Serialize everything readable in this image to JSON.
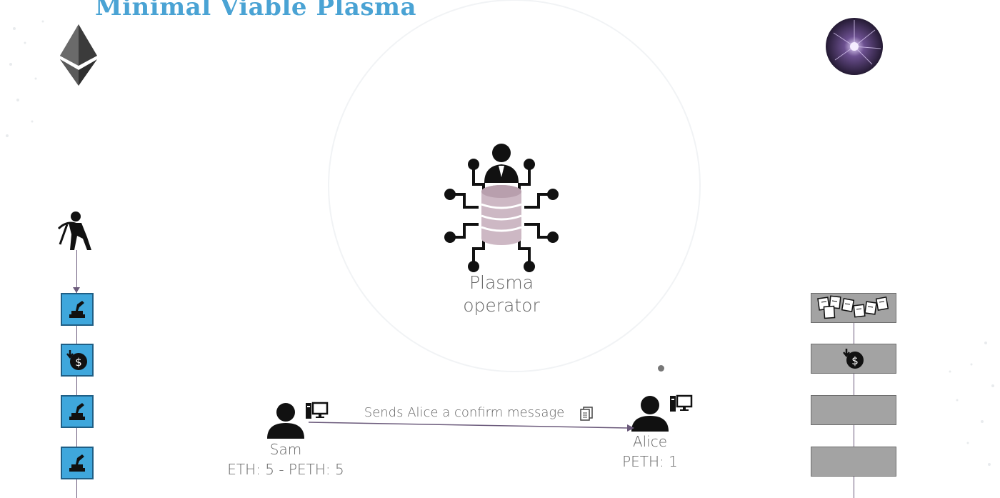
{
  "slide": {
    "title": "Minimal Viable Plasma"
  },
  "logos": {
    "left": "ethereum-logo",
    "right": "plasma-ball-logo"
  },
  "operator": {
    "label_line1": "Plasma",
    "label_line2": "operator",
    "icon": "operator-database-circuit-icon"
  },
  "sam": {
    "name": "Sam",
    "balance": "ETH: 5 - PETH: 5",
    "icon": "user-computer-icon"
  },
  "alice": {
    "name": "Alice",
    "balance": "PETH: 1",
    "icon": "user-computer-icon"
  },
  "message": {
    "text": "Sends Alice a confirm message",
    "icon": "document-icon"
  },
  "ethereum_chain": {
    "miner_icon": "miner-icon",
    "blocks": [
      {
        "icon": "stamp-icon"
      },
      {
        "icon": "deposit-coin-icon"
      },
      {
        "icon": "stamp-icon"
      },
      {
        "icon": "stamp-icon"
      }
    ]
  },
  "plasma_chain": {
    "blocks": [
      {
        "icon": "documents-icon"
      },
      {
        "icon": "deposit-coin-icon"
      },
      {
        "icon": ""
      },
      {
        "icon": ""
      }
    ]
  },
  "colors": {
    "title": "#4aa3d4",
    "eth_block": "#3fa7dc",
    "plasma_block": "#a3a3a3",
    "operator_db": "#cdb8c4"
  }
}
